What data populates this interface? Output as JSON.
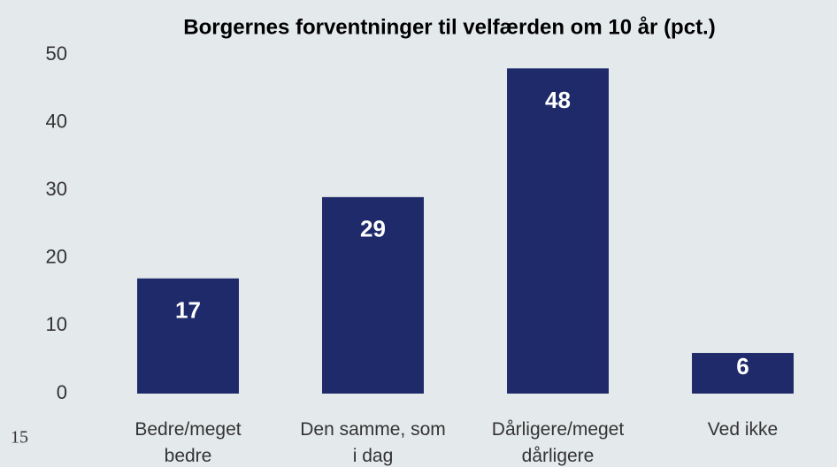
{
  "chart_data": {
    "type": "bar",
    "title": "Borgernes forventninger til velfærden om 10 år (pct.)",
    "categories": [
      "Bedre/meget bedre",
      "Den samme, som i dag",
      "Dårligere/meget dårligere",
      "Ved ikke"
    ],
    "values": [
      17,
      29,
      48,
      6
    ],
    "color": "#1f2a6b",
    "ylim": [
      0,
      50
    ],
    "yticks": [
      0,
      10,
      20,
      30,
      40,
      50
    ],
    "grid": false
  },
  "page_number": "15"
}
